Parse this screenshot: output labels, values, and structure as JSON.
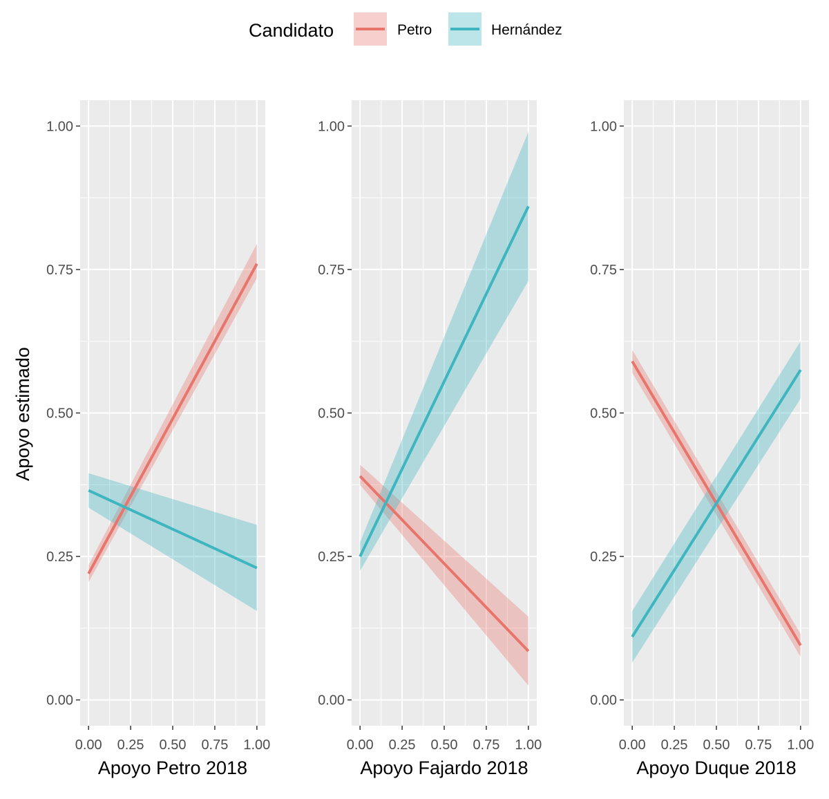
{
  "legend": {
    "title": "Candidato",
    "entries": [
      {
        "label": "Petro",
        "color": "#E8756C"
      },
      {
        "label": "Hernández",
        "color": "#3FB5C0"
      }
    ]
  },
  "ylabel": "Apoyo estimado",
  "chart_data": [
    {
      "type": "line",
      "xlabel": "Apoyo Petro 2018",
      "ylabel": "Apoyo estimado",
      "x_ticks": [
        "0.00",
        "0.25",
        "0.50",
        "0.75",
        "1.00"
      ],
      "y_ticks": [
        "0.00",
        "0.25",
        "0.50",
        "0.75",
        "1.00"
      ],
      "xlim": [
        -0.05,
        1.05
      ],
      "ylim": [
        -0.045,
        1.045
      ],
      "grid": true,
      "series": [
        {
          "name": "Petro",
          "x": [
            0,
            1
          ],
          "y": [
            0.22,
            0.76
          ],
          "ci_lower": [
            0.205,
            0.735
          ],
          "ci_upper": [
            0.235,
            0.795
          ]
        },
        {
          "name": "Hernández",
          "x": [
            0,
            1
          ],
          "y": [
            0.365,
            0.23
          ],
          "ci_lower": [
            0.335,
            0.155
          ],
          "ci_upper": [
            0.395,
            0.305
          ]
        }
      ]
    },
    {
      "type": "line",
      "xlabel": "Apoyo Fajardo 2018",
      "ylabel": "",
      "x_ticks": [
        "0.00",
        "0.25",
        "0.50",
        "0.75",
        "1.00"
      ],
      "y_ticks": [
        "0.00",
        "0.25",
        "0.50",
        "0.75",
        "1.00"
      ],
      "xlim": [
        -0.05,
        1.05
      ],
      "ylim": [
        -0.045,
        1.045
      ],
      "grid": true,
      "series": [
        {
          "name": "Petro",
          "x": [
            0,
            1
          ],
          "y": [
            0.39,
            0.085
          ],
          "ci_lower": [
            0.375,
            0.025
          ],
          "ci_upper": [
            0.41,
            0.145
          ]
        },
        {
          "name": "Hernández",
          "x": [
            0,
            1
          ],
          "y": [
            0.25,
            0.86
          ],
          "ci_lower": [
            0.225,
            0.73
          ],
          "ci_upper": [
            0.275,
            0.99
          ]
        }
      ]
    },
    {
      "type": "line",
      "xlabel": "Apoyo Duque 2018",
      "ylabel": "",
      "x_ticks": [
        "0.00",
        "0.25",
        "0.50",
        "0.75",
        "1.00"
      ],
      "y_ticks": [
        "0.00",
        "0.25",
        "0.50",
        "0.75",
        "1.00"
      ],
      "xlim": [
        -0.05,
        1.05
      ],
      "ylim": [
        -0.045,
        1.045
      ],
      "grid": true,
      "series": [
        {
          "name": "Petro",
          "x": [
            0,
            1
          ],
          "y": [
            0.59,
            0.095
          ],
          "ci_lower": [
            0.57,
            0.075
          ],
          "ci_upper": [
            0.61,
            0.115
          ]
        },
        {
          "name": "Hernández",
          "x": [
            0,
            1
          ],
          "y": [
            0.11,
            0.575
          ],
          "ci_lower": [
            0.065,
            0.525
          ],
          "ci_upper": [
            0.155,
            0.625
          ]
        }
      ]
    }
  ]
}
